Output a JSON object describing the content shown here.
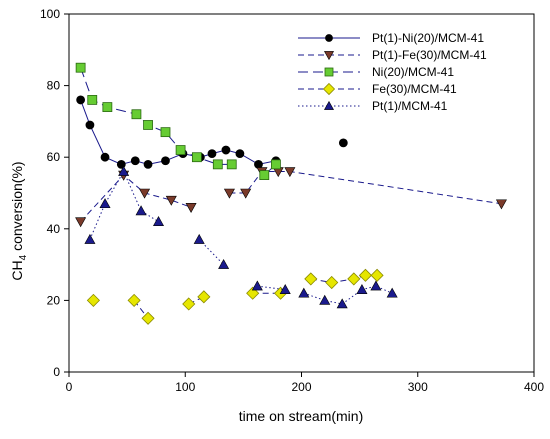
{
  "chart_data": {
    "type": "scatter",
    "title": "",
    "xlabel": "time on stream(min)",
    "ylabel_main": "CH",
    "ylabel_sub": "4",
    "ylabel_rest": " conversion(%)",
    "xlim": [
      0,
      400
    ],
    "ylim": [
      0,
      100
    ],
    "x_ticks": [
      0,
      100,
      200,
      300,
      400
    ],
    "y_ticks": [
      0,
      20,
      40,
      60,
      80,
      100
    ],
    "legend_position": "top-right",
    "series": [
      {
        "name": "Pt(1)-Ni(20)/MCM-41",
        "marker": "circle",
        "line": "solid",
        "color": "#1a1a8c",
        "marker_fill": "#000000",
        "points": [
          [
            10,
            76
          ],
          [
            18,
            69
          ],
          [
            31,
            60
          ],
          [
            45,
            58
          ],
          [
            57,
            59
          ],
          [
            68,
            58
          ],
          [
            83,
            59
          ],
          [
            98,
            61
          ],
          [
            113,
            60
          ],
          [
            123,
            61
          ],
          [
            135,
            62
          ],
          [
            147,
            61
          ],
          [
            163,
            58
          ],
          [
            178,
            59
          ]
        ],
        "extra_points": [
          [
            236,
            64
          ]
        ]
      },
      {
        "name": "Pt(1)-Fe(30)/MCM-41",
        "marker": "triangle-down",
        "line": "dashed",
        "color": "#1a1a8c",
        "marker_fill": "#7a3a2a",
        "points": [
          [
            10,
            42
          ],
          [
            47,
            55
          ],
          [
            65,
            50
          ],
          [
            88,
            48
          ],
          [
            105,
            46
          ]
        ],
        "segments": [
          [
            [
              138,
              50
            ],
            [
              152,
              50
            ],
            [
              166,
              56
            ],
            [
              180,
              56
            ],
            [
              190,
              56
            ],
            [
              372,
              47
            ]
          ]
        ]
      },
      {
        "name": "Ni(20)/MCM-41",
        "marker": "square",
        "line": "longdash",
        "color": "#1a1a8c",
        "marker_fill": "#66cc33",
        "points": [
          [
            10,
            85
          ],
          [
            20,
            76
          ],
          [
            33,
            74
          ],
          [
            58,
            72
          ],
          [
            68,
            69
          ],
          [
            83,
            67
          ],
          [
            96,
            62
          ],
          [
            110,
            60
          ],
          [
            128,
            58
          ],
          [
            140,
            58
          ]
        ],
        "segments": [
          [
            [
              168,
              55
            ],
            [
              178,
              58
            ]
          ]
        ]
      },
      {
        "name": "Fe(30)/MCM-41",
        "marker": "diamond",
        "line": "dashed",
        "color": "#1a1a8c",
        "marker_fill": "#e6e600",
        "points_isolated": [
          [
            21,
            20
          ]
        ],
        "segments": [
          [
            [
              56,
              20
            ],
            [
              68,
              15
            ]
          ],
          [
            [
              103,
              19
            ],
            [
              116,
              21
            ]
          ],
          [
            [
              158,
              22
            ],
            [
              182,
              22
            ]
          ],
          [
            [
              208,
              26
            ],
            [
              226,
              25
            ],
            [
              245,
              26
            ],
            [
              255,
              27
            ],
            [
              265,
              27
            ]
          ]
        ]
      },
      {
        "name": "Pt(1)/MCM-41",
        "marker": "triangle-up",
        "line": "dotted",
        "color": "#1a1a8c",
        "marker_fill": "#1a1a8c",
        "segments": [
          [
            [
              18,
              37
            ],
            [
              31,
              47
            ],
            [
              47,
              56
            ],
            [
              62,
              45
            ],
            [
              77,
              42
            ]
          ],
          [
            [
              112,
              37
            ],
            [
              133,
              30
            ]
          ],
          [
            [
              162,
              24
            ],
            [
              186,
              23
            ]
          ],
          [
            [
              202,
              22
            ],
            [
              220,
              20
            ],
            [
              235,
              19
            ],
            [
              252,
              23
            ],
            [
              264,
              24
            ],
            [
              278,
              22
            ]
          ]
        ]
      }
    ]
  }
}
